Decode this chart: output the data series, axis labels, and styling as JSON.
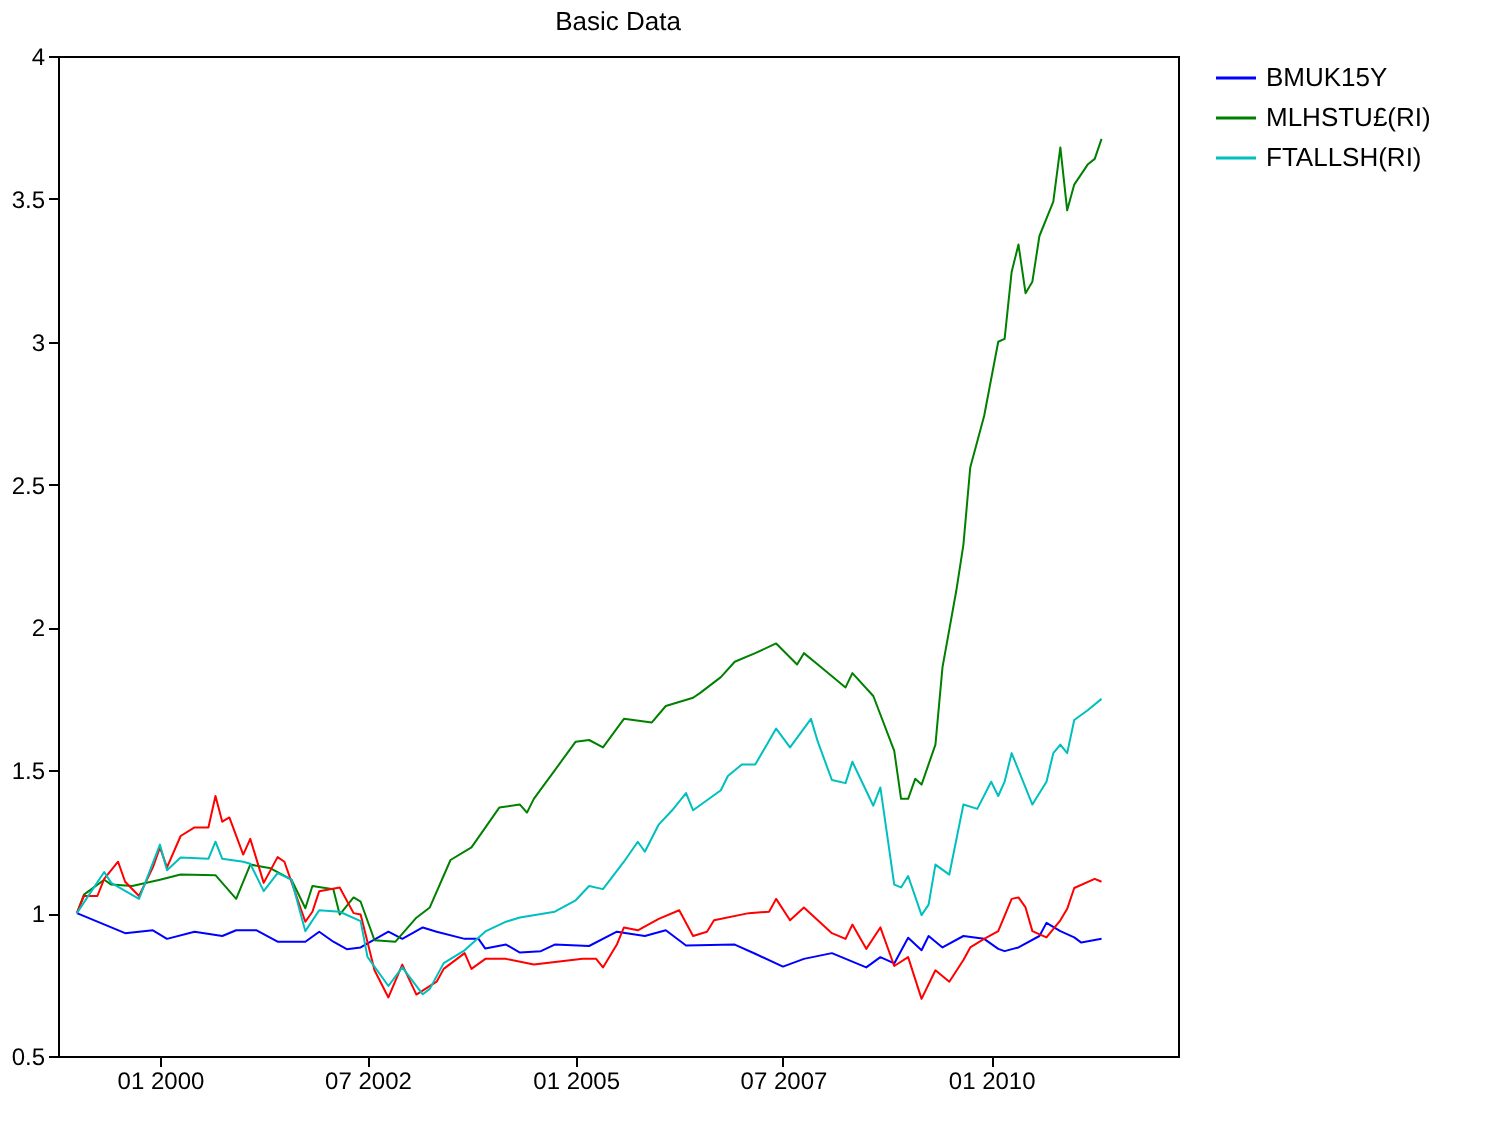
{
  "chart_data": {
    "type": "line",
    "title": "Basic Data",
    "xlim": [
      "1998-10-10",
      "2012-04-01"
    ],
    "xticks": [
      {
        "value": "2000-01",
        "label": "01 2000"
      },
      {
        "value": "2002-07",
        "label": "07 2002"
      },
      {
        "value": "2005-01",
        "label": "01 2005"
      },
      {
        "value": "2007-07",
        "label": "07 2007"
      },
      {
        "value": "2010-01",
        "label": "01 2010"
      }
    ],
    "ylim": [
      0.5,
      4
    ],
    "yticks": [
      0.5,
      1,
      1.5,
      2,
      2.5,
      3,
      3.5,
      4
    ],
    "grid": false,
    "legend": "right",
    "marker": "none",
    "line_style": "solid",
    "series": [
      {
        "name": "BMUK15Y",
        "color": "#0000ff",
        "x": [
          "1999-01",
          "1999-08",
          "1999-12",
          "2000-02",
          "2000-06",
          "2000-10",
          "2000-12",
          "2001-03",
          "2001-06",
          "2001-10",
          "2001-12",
          "2002-02",
          "2002-04",
          "2002-06",
          "2002-10",
          "2002-12",
          "2003-03",
          "2003-05",
          "2003-09",
          "2003-11",
          "2003-12",
          "2004-03",
          "2004-05",
          "2004-08",
          "2004-10",
          "2005-03",
          "2005-07",
          "2005-11",
          "2006-02",
          "2006-05",
          "2006-12",
          "2007-03",
          "2007-07",
          "2007-10",
          "2008-02",
          "2008-07",
          "2008-09",
          "2008-11",
          "2009-01",
          "2009-03",
          "2009-04",
          "2009-06",
          "2009-09",
          "2009-12",
          "2010-02",
          "2010-03",
          "2010-05",
          "2010-08",
          "2010-09",
          "2010-11",
          "2011-01",
          "2011-02",
          "2011-05"
        ],
        "values": [
          1.0,
          0.93,
          0.94,
          0.91,
          0.935,
          0.92,
          0.94,
          0.94,
          0.9,
          0.9,
          0.935,
          0.9,
          0.874,
          0.88,
          0.935,
          0.91,
          0.95,
          0.935,
          0.91,
          0.91,
          0.876,
          0.89,
          0.862,
          0.867,
          0.89,
          0.885,
          0.935,
          0.92,
          0.94,
          0.887,
          0.89,
          0.858,
          0.813,
          0.84,
          0.86,
          0.81,
          0.846,
          0.824,
          0.914,
          0.87,
          0.92,
          0.88,
          0.92,
          0.91,
          0.875,
          0.867,
          0.88,
          0.92,
          0.966,
          0.937,
          0.915,
          0.897,
          0.91
        ]
      },
      {
        "name": "MLHSTU£(RI)",
        "color": "#008000",
        "x": [
          "1999-01",
          "1999-02",
          "1999-05",
          "1999-06",
          "1999-09",
          "2000-01",
          "2000-04",
          "2000-09",
          "2000-12",
          "2001-02",
          "2001-05",
          "2001-08",
          "2001-10",
          "2001-11",
          "2002-02",
          "2002-03",
          "2002-05",
          "2002-06",
          "2002-08",
          "2002-11",
          "2003-02",
          "2003-04",
          "2003-07",
          "2003-10",
          "2004-02",
          "2004-05",
          "2004-06",
          "2004-07",
          "2004-10",
          "2005-01",
          "2005-03",
          "2005-05",
          "2005-08",
          "2005-12",
          "2006-02",
          "2006-06",
          "2006-07",
          "2006-10",
          "2006-12",
          "2007-03",
          "2007-06",
          "2007-09",
          "2007-10",
          "2007-12",
          "2008-04",
          "2008-05",
          "2008-08",
          "2008-11",
          "2008-12",
          "2009-01",
          "2009-02",
          "2009-03",
          "2009-05",
          "2009-06",
          "2009-08",
          "2009-09",
          "2009-10",
          "2009-12",
          "2010-02",
          "2010-03",
          "2010-04",
          "2010-05",
          "2010-06",
          "2010-07",
          "2010-08",
          "2010-10",
          "2010-11",
          "2010-12",
          "2011-01",
          "2011-03",
          "2011-04",
          "2011-05"
        ],
        "values": [
          1.0,
          1.065,
          1.117,
          1.1,
          1.095,
          1.117,
          1.135,
          1.133,
          1.05,
          1.17,
          1.157,
          1.117,
          1.017,
          1.095,
          1.084,
          0.995,
          1.055,
          1.04,
          0.905,
          0.9,
          0.984,
          1.02,
          1.186,
          1.23,
          1.37,
          1.38,
          1.352,
          1.4,
          1.5,
          1.6,
          1.606,
          1.58,
          1.68,
          1.667,
          1.725,
          1.754,
          1.77,
          1.826,
          1.88,
          1.91,
          1.944,
          1.87,
          1.91,
          1.87,
          1.79,
          1.84,
          1.76,
          1.568,
          1.4,
          1.4,
          1.47,
          1.45,
          1.59,
          1.86,
          2.13,
          2.29,
          2.56,
          2.74,
          3.0,
          3.01,
          3.245,
          3.34,
          3.17,
          3.21,
          3.37,
          3.49,
          3.68,
          3.46,
          3.55,
          3.62,
          3.64,
          3.71
        ]
      },
      {
        "color": "#ff0000",
        "x": [
          "1999-01",
          "1999-02",
          "1999-04",
          "1999-05",
          "1999-07",
          "1999-08",
          "1999-10",
          "1999-12",
          "2000-01",
          "2000-02",
          "2000-04",
          "2000-06",
          "2000-08",
          "2000-09",
          "2000-10",
          "2000-11",
          "2001-01",
          "2001-02",
          "2001-04",
          "2001-06",
          "2001-07",
          "2001-10",
          "2001-11",
          "2001-12",
          "2002-03",
          "2002-05",
          "2002-06",
          "2002-08",
          "2002-10",
          "2002-12",
          "2003-02",
          "2003-05",
          "2003-06",
          "2003-09",
          "2003-10",
          "2003-12",
          "2004-03",
          "2004-07",
          "2005-02",
          "2005-04",
          "2005-05",
          "2005-07",
          "2005-08",
          "2005-10",
          "2006-01",
          "2006-04",
          "2006-06",
          "2006-08",
          "2006-09",
          "2007-02",
          "2007-05",
          "2007-06",
          "2007-08",
          "2007-10",
          "2007-12",
          "2008-02",
          "2008-04",
          "2008-05",
          "2008-07",
          "2008-09",
          "2008-11",
          "2009-01",
          "2009-03",
          "2009-05",
          "2009-07",
          "2009-09",
          "2009-10",
          "2009-12",
          "2010-02",
          "2010-04",
          "2010-05",
          "2010-06",
          "2010-07",
          "2010-09",
          "2010-11",
          "2010-12",
          "2011-01",
          "2011-04",
          "2011-05"
        ],
        "values": [
          1.0,
          1.06,
          1.06,
          1.12,
          1.18,
          1.11,
          1.06,
          1.16,
          1.23,
          1.16,
          1.27,
          1.3,
          1.3,
          1.41,
          1.32,
          1.335,
          1.205,
          1.26,
          1.106,
          1.196,
          1.18,
          0.97,
          1.005,
          1.077,
          1.09,
          1.0,
          0.995,
          0.8,
          0.705,
          0.82,
          0.715,
          0.76,
          0.805,
          0.86,
          0.805,
          0.84,
          0.84,
          0.82,
          0.84,
          0.84,
          0.81,
          0.89,
          0.95,
          0.94,
          0.98,
          1.01,
          0.92,
          0.935,
          0.975,
          1.0,
          1.005,
          1.05,
          0.975,
          1.02,
          0.975,
          0.93,
          0.91,
          0.96,
          0.875,
          0.95,
          0.815,
          0.846,
          0.7,
          0.8,
          0.76,
          0.836,
          0.88,
          0.91,
          0.937,
          1.05,
          1.055,
          1.02,
          0.937,
          0.915,
          0.975,
          1.015,
          1.088,
          1.12,
          1.11
        ]
      },
      {
        "name": "FTALLSH(RI)",
        "color": "#00bfbf",
        "x": [
          "1999-01",
          "1999-05",
          "1999-06",
          "1999-10",
          "2000-01",
          "2000-02",
          "2000-04",
          "2000-08",
          "2000-09",
          "2000-10",
          "2001-01",
          "2001-02",
          "2001-04",
          "2001-06",
          "2001-08",
          "2001-10",
          "2001-12",
          "2002-03",
          "2002-06",
          "2002-07",
          "2002-10",
          "2002-12",
          "2003-03",
          "2003-04",
          "2003-06",
          "2003-09",
          "2003-12",
          "2004-03",
          "2004-05",
          "2004-10",
          "2005-01",
          "2005-03",
          "2005-05",
          "2005-08",
          "2005-10",
          "2005-11",
          "2006-01",
          "2006-03",
          "2006-05",
          "2006-06",
          "2006-10",
          "2006-11",
          "2007-01",
          "2007-03",
          "2007-06",
          "2007-08",
          "2007-11",
          "2007-12",
          "2008-02",
          "2008-04",
          "2008-05",
          "2008-08",
          "2008-09",
          "2008-11",
          "2008-12",
          "2009-01",
          "2009-03",
          "2009-04",
          "2009-05",
          "2009-07",
          "2009-09",
          "2009-11",
          "2010-01",
          "2010-02",
          "2010-03",
          "2010-04",
          "2010-07",
          "2010-09",
          "2010-10",
          "2010-11",
          "2010-12",
          "2011-01",
          "2011-03",
          "2011-05"
        ],
        "values": [
          1.0,
          1.144,
          1.106,
          1.05,
          1.24,
          1.15,
          1.195,
          1.19,
          1.25,
          1.19,
          1.18,
          1.173,
          1.077,
          1.14,
          1.117,
          0.937,
          1.01,
          1.005,
          0.972,
          0.847,
          0.745,
          0.81,
          0.716,
          0.735,
          0.825,
          0.87,
          0.936,
          0.97,
          0.985,
          1.005,
          1.045,
          1.095,
          1.084,
          1.18,
          1.25,
          1.215,
          1.31,
          1.36,
          1.42,
          1.36,
          1.43,
          1.48,
          1.52,
          1.52,
          1.646,
          1.58,
          1.68,
          1.6,
          1.466,
          1.455,
          1.53,
          1.376,
          1.44,
          1.1,
          1.09,
          1.13,
          0.993,
          1.03,
          1.17,
          1.135,
          1.38,
          1.365,
          1.46,
          1.41,
          1.46,
          1.56,
          1.38,
          1.46,
          1.56,
          1.59,
          1.56,
          1.676,
          1.71,
          1.75
        ]
      }
    ]
  }
}
